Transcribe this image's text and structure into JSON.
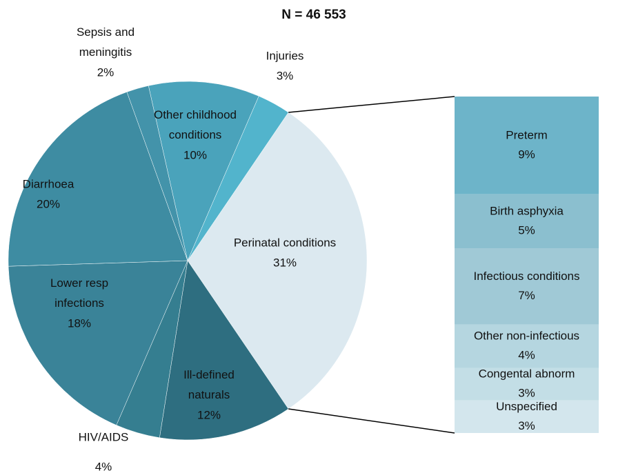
{
  "chart_data": {
    "type": "pie-of-bar",
    "title": "N = 46 553",
    "pie": {
      "categories": [
        "Perinatal conditions",
        "Ill-defined naturals",
        "HIV/AIDS",
        "Lower resp infections",
        "Diarrhoea",
        "Sepsis and meningitis",
        "Other childhood conditions",
        "Injuries"
      ],
      "values": [
        31,
        12,
        4,
        18,
        20,
        2,
        10,
        3
      ],
      "value_labels": [
        "31%",
        "12%",
        "4%",
        "18%",
        "20%",
        "2%",
        "10%",
        "3%"
      ],
      "colors": [
        "#dce9f0",
        "#2e6e80",
        "#357e90",
        "#3a8398",
        "#3e8ca2",
        "#4393aa",
        "#4aa3bb",
        "#52b4cc"
      ]
    },
    "bar": {
      "categories": [
        "Preterm",
        "Birth asphyxia",
        "Infectious conditions",
        "Other non-infectious",
        "Congental abnorm",
        "Unspecified"
      ],
      "values": [
        9,
        5,
        7,
        4,
        3,
        3
      ],
      "value_labels": [
        "9%",
        "5%",
        "7%",
        "4%",
        "3%",
        "3%"
      ],
      "colors": [
        "#6db4c9",
        "#8bbfcf",
        "#a0c9d6",
        "#b5d6e0",
        "#c3dee6",
        "#d3e6ed"
      ]
    }
  }
}
